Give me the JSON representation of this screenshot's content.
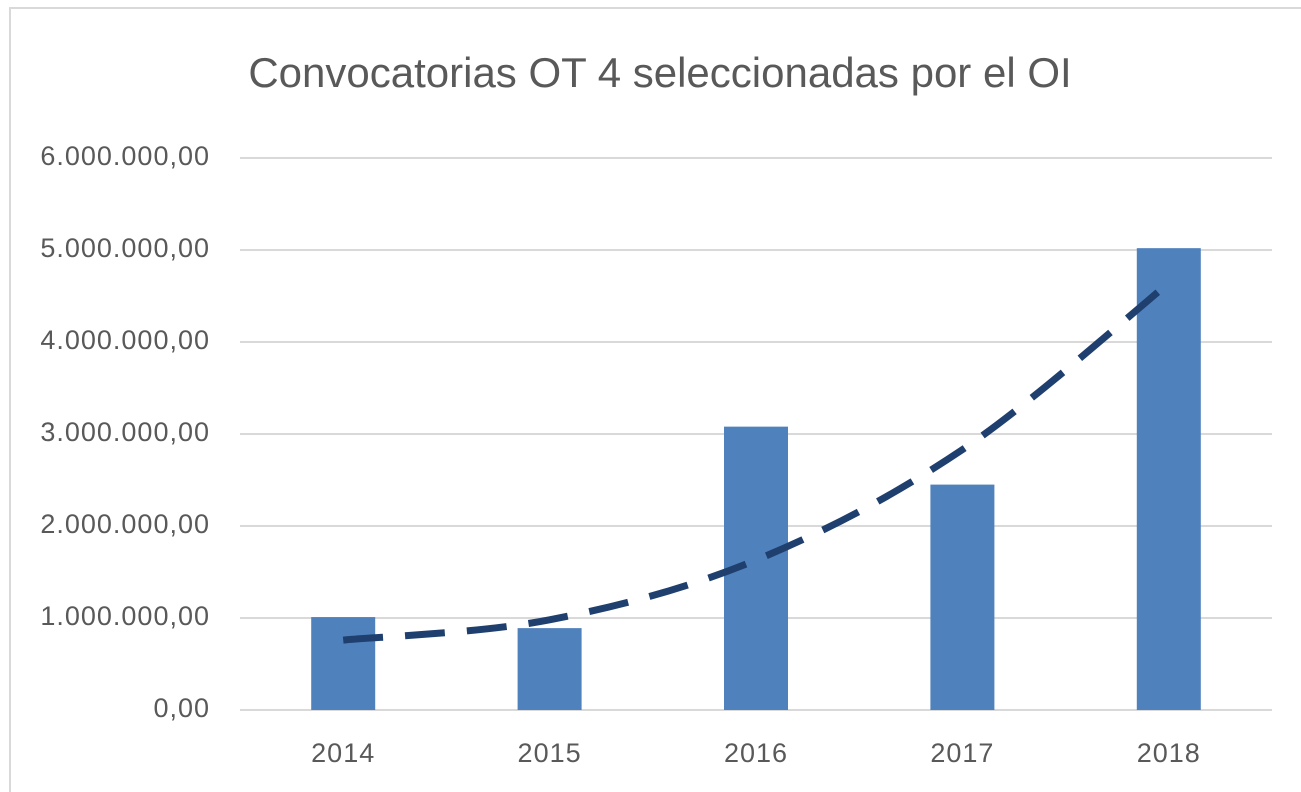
{
  "chart_data": {
    "type": "bar",
    "title": "Convocatorias OT 4 seleccionadas por el OI",
    "categories": [
      "2014",
      "2015",
      "2016",
      "2017",
      "2018"
    ],
    "values": [
      1010000,
      890000,
      3080000,
      2450000,
      5020000
    ],
    "color": "#4f81bd",
    "trendline": {
      "values": [
        760000,
        980000,
        1630000,
        2830000,
        4640000
      ],
      "color": "#1f3f6e",
      "dashed": true
    },
    "ylim": [
      0,
      6000000
    ],
    "yticks": [
      {
        "value": 0,
        "label": "0,00"
      },
      {
        "value": 1000000,
        "label": "1.000.000,00"
      },
      {
        "value": 2000000,
        "label": "2.000.000,00"
      },
      {
        "value": 3000000,
        "label": "3.000.000,00"
      },
      {
        "value": 4000000,
        "label": "4.000.000,00"
      },
      {
        "value": 5000000,
        "label": "5.000.000,00"
      },
      {
        "value": 6000000,
        "label": "6.000.000,00"
      }
    ],
    "grid": true
  }
}
